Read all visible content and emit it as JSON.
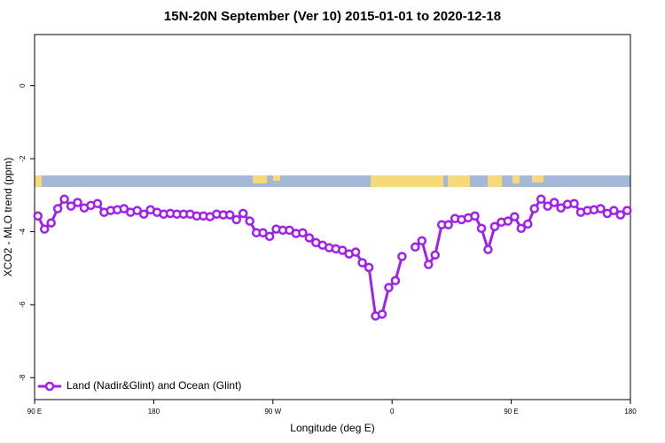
{
  "chart_data": {
    "type": "line",
    "title": "15N-20N September (Ver 10)   2015-01-01 to 2020-12-18",
    "x_label": "Longitude (deg E)",
    "y_label": "XCO2 - MLO trend (ppm)",
    "x": [
      92.5,
      97.5,
      102.5,
      107.5,
      112.5,
      117.5,
      122.5,
      127.5,
      132.5,
      137.5,
      142.5,
      147.5,
      152.5,
      157.5,
      162.5,
      167.5,
      172.5,
      177.5,
      182.5,
      187.5,
      192.5,
      197.5,
      202.5,
      207.5,
      212.5,
      217.5,
      222.5,
      227.5,
      232.5,
      237.5,
      242.5,
      247.5,
      252.5,
      257.5,
      262.5,
      267.5,
      272.5,
      277.5,
      282.5,
      287.5,
      292.5,
      297.5,
      302.5,
      307.5,
      312.5,
      317.5,
      322.5,
      327.5,
      332.5,
      337.5,
      342.5,
      347.5,
      352.5,
      357.5,
      362.5,
      367.5,
      372.5,
      377.5,
      382.5,
      387.5,
      392.5,
      397.5,
      402.5,
      407.5,
      412.5,
      417.5,
      422.5,
      427.5,
      432.5,
      437.5,
      442.5,
      447.5,
      452.5,
      457.5,
      462.5,
      467.5,
      472.5,
      477.5,
      482.5,
      487.5,
      492.5,
      497.5,
      502.5,
      507.5,
      512.5,
      517.5,
      522.5,
      527.5,
      532.5,
      537.5
    ],
    "series": [
      {
        "name": "Land (Nadir&Glint) and Ocean (Glint)",
        "color": "#a020f0",
        "values": [
          -3.57,
          -3.93,
          -3.76,
          -3.37,
          -3.11,
          -3.3,
          -3.2,
          -3.35,
          -3.28,
          -3.23,
          -3.47,
          -3.42,
          -3.4,
          -3.37,
          -3.47,
          -3.42,
          -3.52,
          -3.4,
          -3.47,
          -3.52,
          -3.5,
          -3.52,
          -3.52,
          -3.52,
          -3.57,
          -3.57,
          -3.59,
          -3.52,
          -3.54,
          -3.54,
          -3.67,
          -3.5,
          -3.71,
          -4.03,
          -4.03,
          -4.13,
          -3.93,
          -3.96,
          -3.96,
          -4.05,
          -4.03,
          -4.17,
          -4.3,
          -4.37,
          -4.44,
          -4.47,
          -4.51,
          -4.61,
          -4.56,
          -4.85,
          -4.98,
          -6.31,
          -6.26,
          -5.53,
          -5.34,
          -4.68,
          null,
          -4.42,
          -4.25,
          -4.9,
          -4.64,
          -3.81,
          -3.81,
          -3.64,
          -3.67,
          -3.62,
          -3.57,
          -3.91,
          -4.49,
          -3.86,
          -3.74,
          -3.71,
          -3.59,
          -3.91,
          -3.79,
          -3.37,
          -3.11,
          -3.3,
          -3.2,
          -3.35,
          -3.25,
          -3.23,
          -3.47,
          -3.42,
          -3.4,
          -3.37,
          -3.5,
          -3.42,
          -3.54,
          -3.42
        ]
      }
    ],
    "xlim": [
      90,
      540
    ],
    "xticks": [
      {
        "value": 90,
        "label": "90 E"
      },
      {
        "value": 180,
        "label": "180"
      },
      {
        "value": 270,
        "label": "90 W"
      },
      {
        "value": 360,
        "label": "0"
      },
      {
        "value": 450,
        "label": "90 E"
      },
      {
        "value": 540,
        "label": "180"
      }
    ],
    "ylim": [
      -8.6,
      1.4
    ],
    "yticks": [
      0,
      -2,
      -4,
      -6,
      -8
    ],
    "legend": "bottom-left"
  }
}
